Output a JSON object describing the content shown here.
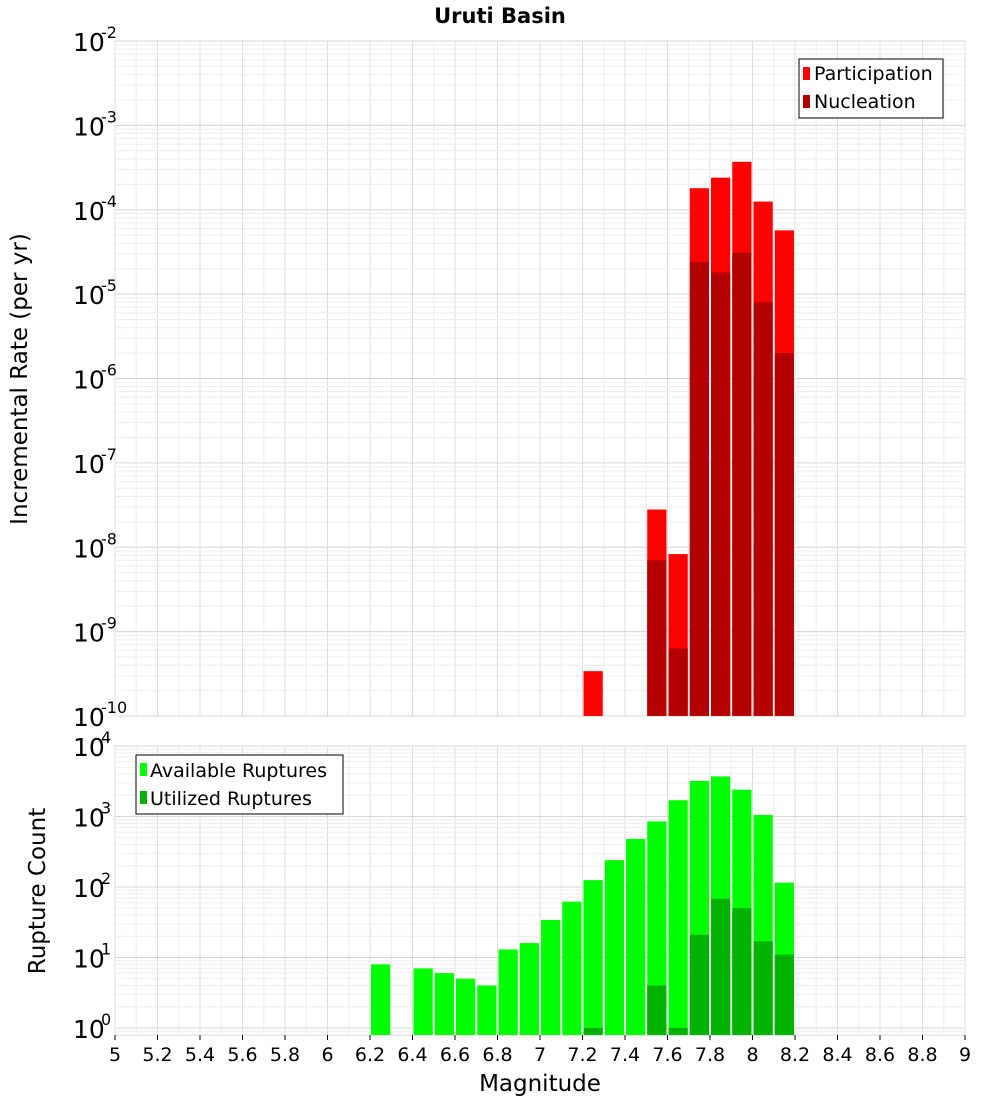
{
  "title": "Uruti Basin",
  "chart_data": [
    {
      "type": "bar",
      "ylabel": "Incremental Rate (per yr)",
      "yscale": "log",
      "ylim_exp": [
        -10,
        -2
      ],
      "ytick_exponents": [
        "-10",
        "-9",
        "-8",
        "-7",
        "-6",
        "-5",
        "-4",
        "-3",
        "-2"
      ],
      "xlim": [
        5,
        9
      ],
      "bin_width": 0.1,
      "grid": true,
      "legend_position": "top-right",
      "series": [
        {
          "name": "Participation",
          "color": "#ff0000",
          "x": [
            7.25,
            7.55,
            7.65,
            7.75,
            7.85,
            7.95,
            8.05,
            8.15
          ],
          "values": [
            3.4e-10,
            2.8e-08,
            8.3e-09,
            0.00018,
            0.00024,
            0.00037,
            0.000125,
            5.7e-05
          ]
        },
        {
          "name": "Nucleation",
          "color": "#b20000",
          "x": [
            7.55,
            7.65,
            7.75,
            7.85,
            7.95,
            8.05,
            8.15
          ],
          "values": [
            7e-09,
            6.3e-10,
            2.4e-05,
            1.8e-05,
            3.1e-05,
            8e-06,
            2e-06
          ]
        }
      ]
    },
    {
      "type": "bar",
      "ylabel": "Rupture Count",
      "xlabel": "Magnitude",
      "yscale": "log",
      "ylim_exp": [
        -0.1,
        4
      ],
      "ytick_exponents": [
        "0",
        "1",
        "2",
        "3",
        "4"
      ],
      "xlim": [
        5,
        9
      ],
      "bin_width": 0.1,
      "xtick_labels": [
        "5",
        "5.2",
        "5.4",
        "5.6",
        "5.8",
        "6",
        "6.2",
        "6.4",
        "6.6",
        "6.8",
        "7",
        "7.2",
        "7.4",
        "7.6",
        "7.8",
        "8",
        "8.2",
        "8.4",
        "8.6",
        "8.8",
        "9"
      ],
      "grid": true,
      "legend_position": "top-left",
      "series": [
        {
          "name": "Available Ruptures",
          "color": "#00ff00",
          "x": [
            6.25,
            6.45,
            6.55,
            6.65,
            6.75,
            6.85,
            6.95,
            7.05,
            7.15,
            7.25,
            7.35,
            7.45,
            7.55,
            7.65,
            7.75,
            7.85,
            7.95,
            8.05,
            8.15
          ],
          "values": [
            8,
            7,
            6,
            5,
            4,
            13,
            16,
            34,
            62,
            125,
            240,
            480,
            850,
            1700,
            3200,
            3700,
            2400,
            1050,
            115
          ]
        },
        {
          "name": "Utilized Ruptures",
          "color": "#00b200",
          "x": [
            7.25,
            7.55,
            7.65,
            7.75,
            7.85,
            7.95,
            8.05,
            8.15
          ],
          "values": [
            1,
            4,
            1,
            21,
            68,
            50,
            17,
            11
          ]
        }
      ]
    }
  ]
}
